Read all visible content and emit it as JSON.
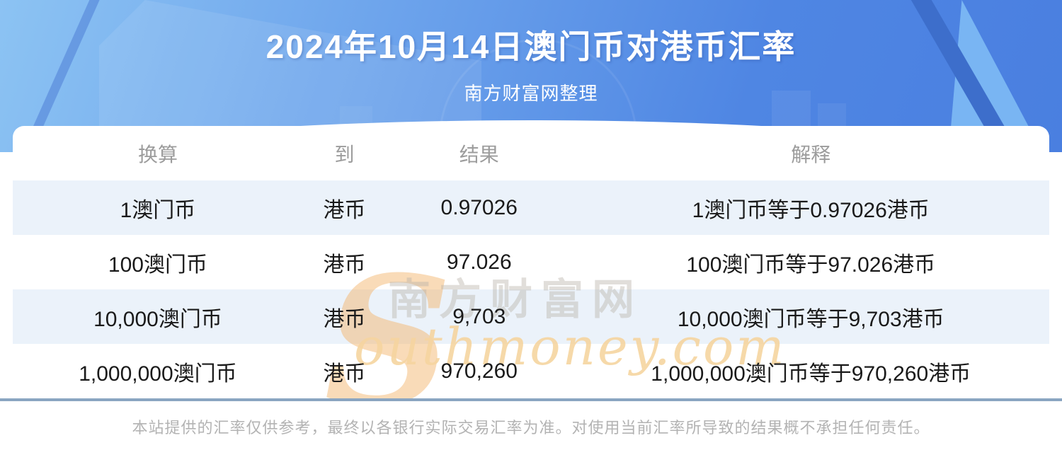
{
  "header": {
    "title": "2024年10月14日澳门币对港币汇率",
    "subtitle": "南方财富网整理"
  },
  "table": {
    "columns": [
      "换算",
      "到",
      "结果",
      "解释"
    ],
    "rows": [
      [
        "1澳门币",
        "港币",
        "0.97026",
        "1澳门币等于0.97026港币"
      ],
      [
        "100澳门币",
        "港币",
        "97.026",
        "100澳门币等于97.026港币"
      ],
      [
        "10,000澳门币",
        "港币",
        "9,703",
        "10,000澳门币等于9,703港币"
      ],
      [
        "1,000,000澳门币",
        "港币",
        "970,260",
        "1,000,000澳门币等于970,260港币"
      ]
    ]
  },
  "watermark": {
    "initial": "S",
    "latin": "outhmoney.com",
    "chinese": "南方财富网"
  },
  "footer": {
    "disclaimer": "本站提供的汇率仅供参考，最终以各银行实际交易汇率为准。对使用当前汇率所导致的结果概不承担任何责任。"
  },
  "colors": {
    "banner_blue_light": "#8cc3f3",
    "banner_blue_dark": "#4a7fe0",
    "deco_band_dark": "#3d6ecb",
    "deco_triangle_light": "#79b5f3",
    "row_alt_bg": "#ebf2fa",
    "divider": "#8aa5c1",
    "header_text": "#9c9c9c",
    "body_text": "#1a1a1a",
    "footer_text": "#b3b3b3",
    "watermark_orange": "#f4b873",
    "watermark_peach": "#f6d5a0"
  }
}
